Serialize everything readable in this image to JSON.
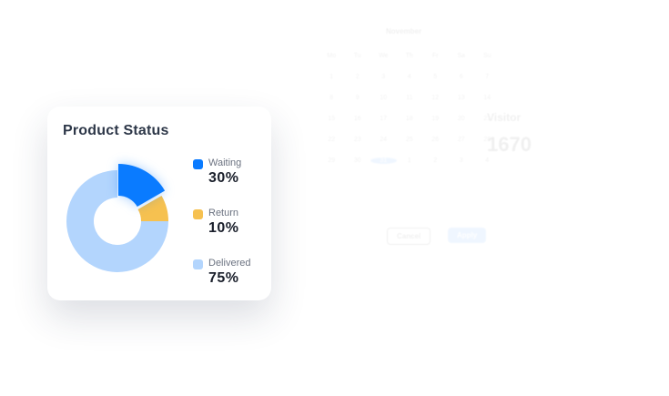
{
  "background": {
    "month": "November",
    "weekdays": [
      "Mo",
      "Tu",
      "We",
      "Th",
      "Fr",
      "Sa",
      "Su"
    ],
    "days": [
      "1",
      "2",
      "3",
      "4",
      "5",
      "6",
      "7",
      "8",
      "9",
      "10",
      "11",
      "12",
      "13",
      "14",
      "15",
      "16",
      "17",
      "18",
      "19",
      "20",
      "21",
      "22",
      "23",
      "24",
      "25",
      "26",
      "27",
      "28",
      "29",
      "30",
      "31",
      "1",
      "2",
      "3",
      "4"
    ],
    "selected_day": "31",
    "cancel_label": "Cancel",
    "apply_label": "Apply",
    "visitor_label": "Visitor",
    "visitor_value": "1670"
  },
  "card": {
    "title": "Product Status",
    "chart_data": {
      "type": "pie",
      "categories": [
        "Waiting",
        "Return",
        "Delivered"
      ],
      "values": [
        30,
        10,
        75
      ],
      "value_labels": [
        "30%",
        "10%",
        "75%"
      ],
      "colors": [
        "#0a7bff",
        "#f6c150",
        "#b3d5fd"
      ],
      "legend": "right"
    }
  }
}
